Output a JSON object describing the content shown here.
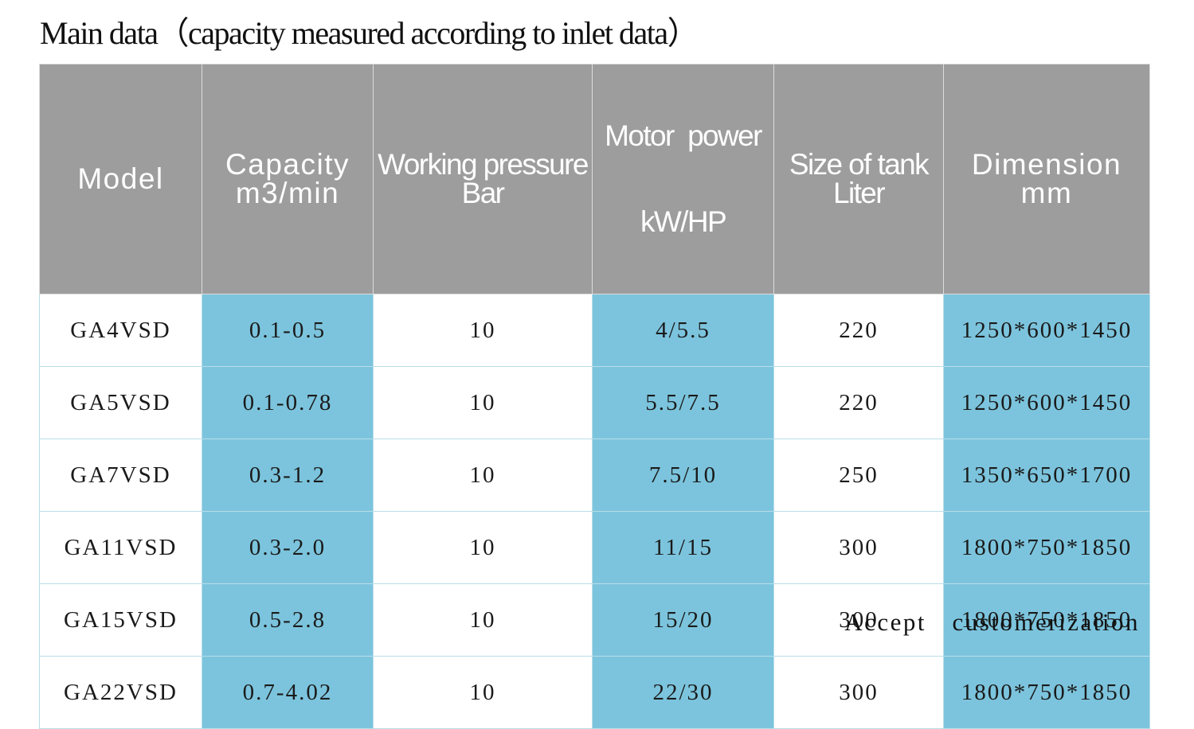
{
  "title": "Main data（capacity measured according to inlet data）",
  "table": {
    "headers": [
      {
        "line1": "Model",
        "line2": ""
      },
      {
        "line1": "Capacity",
        "line2": "m3/min"
      },
      {
        "line1": "Working pressure",
        "line2": "Bar"
      },
      {
        "line1": "Motor  power",
        "line2": "kW/HP"
      },
      {
        "line1": "Size of tank",
        "line2": "Liter"
      },
      {
        "line1": "Dimension",
        "line2": "mm"
      }
    ],
    "rows": [
      [
        "GA4VSD",
        "0.1-0.5",
        "10",
        "4/5.5",
        "220",
        "1250*600*1450"
      ],
      [
        "GA5VSD",
        "0.1-0.78",
        "10",
        "5.5/7.5",
        "220",
        "1250*600*1450"
      ],
      [
        "GA7VSD",
        "0.3-1.2",
        "10",
        "7.5/10",
        "250",
        "1350*650*1700"
      ],
      [
        "GA11VSD",
        "0.3-2.0",
        "10",
        "11/15",
        "300",
        "1800*750*1850"
      ],
      [
        "GA15VSD",
        "0.5-2.8",
        "10",
        "15/20",
        "300",
        "1800*750*1850"
      ],
      [
        "GA22VSD",
        "0.7-4.02",
        "10",
        "22/30",
        "300",
        "1800*750*1850"
      ]
    ]
  },
  "footer_note": "Accept  customerization",
  "colors": {
    "header_bg": "#9d9d9d",
    "highlight_column_bg": "#7cc4dd",
    "grid_line": "#b9dde8",
    "text": "#1a1a1a"
  }
}
